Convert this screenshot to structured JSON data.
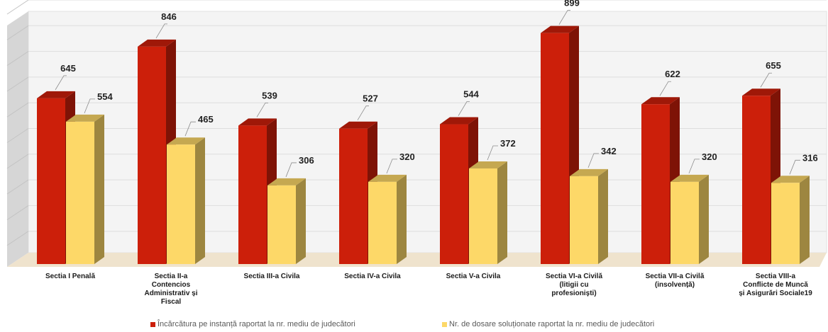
{
  "chart_data": {
    "type": "bar",
    "categories": [
      [
        "Sectia I Penală"
      ],
      [
        "Sectia II-a",
        "Contencios",
        "Administrativ și",
        "Fiscal"
      ],
      [
        "Sectia III-a Civila"
      ],
      [
        "Sectia IV-a Civila"
      ],
      [
        "Sectia V-a Civila"
      ],
      [
        "Sectia VI-a Civilă",
        "(litigii cu",
        "profesioniști)"
      ],
      [
        "Sectia VII-a Civilă",
        "(insolvență)"
      ],
      [
        "Sectia VIII-a",
        "Conflicte de Muncă",
        "și Asigurări Sociale19"
      ]
    ],
    "series": [
      {
        "name": "Încărcătura pe instanță raportat la nr. mediu de judecători",
        "color": "#CC1F0A",
        "values": [
          645,
          846,
          539,
          527,
          544,
          899,
          622,
          655
        ]
      },
      {
        "name": "Nr. de dosare soluționate raportat la nr. mediu de judecători",
        "color": "#FDD868",
        "values": [
          554,
          465,
          306,
          320,
          372,
          342,
          320,
          316
        ]
      }
    ],
    "ylim": [
      0,
      1000
    ],
    "grid": true,
    "legend_position": "bottom"
  }
}
